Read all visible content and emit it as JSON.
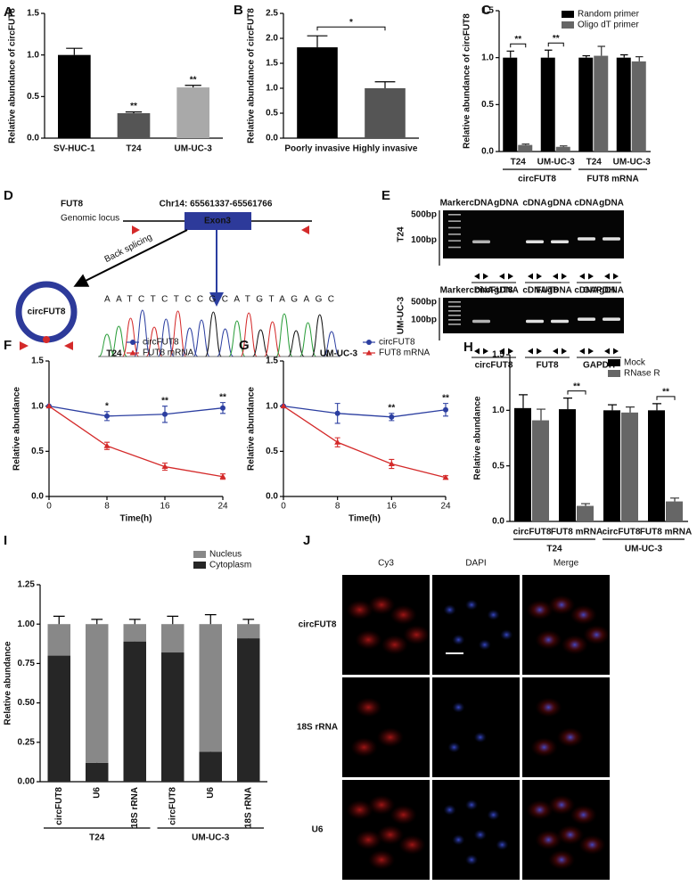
{
  "chart_data": [
    {
      "panel": "A",
      "type": "bar",
      "ylabel": "Relative abundance of circFUT8",
      "categories": [
        "SV-HUC-1",
        "T24",
        "UM-UC-3"
      ],
      "values": [
        1.0,
        0.3,
        0.61
      ],
      "errors": [
        0.08,
        0.015,
        0.025
      ],
      "colors": [
        "#000000",
        "#555555",
        "#a9a9a9"
      ],
      "significance": [
        null,
        "**",
        "**"
      ],
      "ylim": [
        0,
        1.5
      ],
      "yticks": [
        {
          "value": 0,
          "label": "0.0"
        },
        0.5,
        {
          "value": 1,
          "label": "1.0"
        },
        1.5
      ]
    },
    {
      "panel": "B",
      "type": "bar",
      "ylabel": "Relative abundance of circFUT8",
      "categories": [
        "Poorly invasive",
        "Highly invasive"
      ],
      "values": [
        1.82,
        1.0
      ],
      "errors": [
        0.23,
        0.13
      ],
      "colors": [
        "#000000",
        "#555555"
      ],
      "bracket": "*",
      "ylim": [
        0,
        2.5
      ],
      "yticks": [
        {
          "value": 0,
          "label": "0.0"
        },
        0.5,
        {
          "value": 1,
          "label": "1.0"
        },
        1.5,
        {
          "value": 2,
          "label": "2.0"
        },
        2.5
      ]
    },
    {
      "panel": "C",
      "type": "bar",
      "ylabel": "Relative abundance of circFUT8",
      "categories": [
        "T24",
        "UM-UC-3",
        "T24",
        "UM-UC-3"
      ],
      "groups": [
        "circFUT8",
        "FUT8 mRNA"
      ],
      "series": [
        {
          "name": "Random primer",
          "color": "#000000",
          "values": [
            1.0,
            1.0,
            1.0,
            1.0
          ],
          "errors": [
            0.07,
            0.08,
            0.02,
            0.03
          ]
        },
        {
          "name": "Oligo dT primer",
          "color": "#666666",
          "values": [
            0.07,
            0.05,
            1.02,
            0.96
          ],
          "errors": [
            0.01,
            0.01,
            0.1,
            0.05
          ]
        }
      ],
      "significance": [
        "**",
        "**",
        null,
        null
      ],
      "legend": "top right",
      "ylim": [
        0,
        1.5
      ],
      "yticks": [
        {
          "value": 0,
          "label": "0.0"
        },
        0.5,
        {
          "value": 1,
          "label": "1.0"
        },
        1.5
      ]
    },
    {
      "panel": "F",
      "type": "line",
      "title": "T24",
      "ylabel": "Relative abundance",
      "xlabel": "Time(h)",
      "x": [
        0,
        8,
        16,
        24
      ],
      "series": [
        {
          "name": "circFUT8",
          "color": "#2b3ea0",
          "marker": "circle",
          "values": [
            1.0,
            0.89,
            0.91,
            0.98
          ],
          "errors": [
            null,
            0.05,
            0.09,
            0.06
          ]
        },
        {
          "name": "FUT8 mRNA",
          "color": "#d42a2a",
          "marker": "triangle",
          "values": [
            1.0,
            0.56,
            0.33,
            0.22
          ],
          "errors": [
            null,
            0.04,
            0.04,
            0.03
          ]
        }
      ],
      "significance": [
        null,
        "*",
        "**",
        "**"
      ],
      "legend": "top right",
      "xlim": [
        0,
        24
      ],
      "xticks": [
        0,
        8,
        16,
        24
      ],
      "ylim": [
        0,
        1.5
      ],
      "yticks": [
        {
          "value": 0,
          "label": "0.0"
        },
        0.5,
        {
          "value": 1,
          "label": "1.0"
        },
        1.5
      ]
    },
    {
      "panel": "G",
      "type": "line",
      "title": "UM-UC-3",
      "ylabel": "Relative abundance",
      "xlabel": "Time(h)",
      "x": [
        0,
        8,
        16,
        24
      ],
      "series": [
        {
          "name": "circFUT8",
          "color": "#2b3ea0",
          "marker": "circle",
          "values": [
            1.0,
            0.92,
            0.88,
            0.96
          ],
          "errors": [
            null,
            0.11,
            0.04,
            0.07
          ]
        },
        {
          "name": "FUT8 mRNA",
          "color": "#d42a2a",
          "marker": "triangle",
          "values": [
            1.0,
            0.6,
            0.36,
            0.21
          ],
          "errors": [
            null,
            0.05,
            0.05,
            0.02
          ]
        }
      ],
      "significance": [
        null,
        null,
        "**",
        "**"
      ],
      "legend": "top right",
      "xlim": [
        0,
        24
      ],
      "xticks": [
        0,
        8,
        16,
        24
      ],
      "ylim": [
        0,
        1.5
      ],
      "yticks": [
        {
          "value": 0,
          "label": "0.0"
        },
        0.5,
        {
          "value": 1,
          "label": "1.0"
        },
        1.5
      ]
    },
    {
      "panel": "H",
      "type": "bar",
      "ylabel": "Relative abundance",
      "categories": [
        "circFUT8",
        "FUT8 mRNA",
        "circFUT8",
        "FUT8 mRNA"
      ],
      "groups": [
        "T24",
        "UM-UC-3"
      ],
      "series": [
        {
          "name": "Mock",
          "color": "#000000",
          "values": [
            1.02,
            1.01,
            1.0,
            1.0
          ],
          "errors": [
            0.12,
            0.1,
            0.05,
            0.06
          ]
        },
        {
          "name": "RNase R",
          "color": "#666666",
          "values": [
            0.91,
            0.14,
            0.98,
            0.18
          ],
          "errors": [
            0.1,
            0.02,
            0.05,
            0.03
          ]
        }
      ],
      "significance": [
        null,
        "**",
        null,
        "**"
      ],
      "legend": "top right",
      "ylim": [
        0,
        1.5
      ],
      "yticks": [
        {
          "value": 0,
          "label": "0.0"
        },
        0.5,
        {
          "value": 1,
          "label": "1.0"
        },
        1.5
      ]
    },
    {
      "panel": "I",
      "type": "bar",
      "stacked": true,
      "ylabel": "Relative abundance",
      "categories": [
        "circFUT8",
        "U6",
        "18S rRNA",
        "circFUT8",
        "U6",
        "18S rRNA"
      ],
      "groups": [
        "T24",
        "UM-UC-3"
      ],
      "series": [
        {
          "name": "Nucleus",
          "color": "#888888",
          "values": [
            0.2,
            0.88,
            0.11,
            0.18,
            0.81,
            0.09
          ],
          "errors": [
            0.05,
            0.03,
            0.03,
            0.05,
            0.06,
            0.03
          ]
        },
        {
          "name": "Cytoplasm",
          "color": "#262626",
          "values": [
            0.8,
            0.12,
            0.89,
            0.82,
            0.19,
            0.91
          ],
          "errors": [
            0.04,
            0.03,
            0.02,
            0.04,
            0.05,
            0.03
          ]
        }
      ],
      "legend": "top right",
      "ylim": [
        0,
        1.25
      ],
      "yticks": [
        {
          "value": 0,
          "label": "0.00"
        },
        0.25,
        {
          "value": 0.5,
          "label": "0.50"
        },
        0.75,
        {
          "value": 1,
          "label": "1.00"
        },
        1.25
      ]
    }
  ],
  "diagram_d": {
    "panel": "D",
    "gene": "FUT8",
    "locus_label": "Genomic locus",
    "coordinates": "Chr14: 65561337-65561766",
    "exon": "Exon3",
    "arrow_label": "Back splicing",
    "circle_label": "circFUT8",
    "sequence": "AATCTCTCCGCATGTAGAGC"
  },
  "gel_e": {
    "panel": "E",
    "gels": [
      {
        "cell_line": "T24",
        "lanes": [
          "Marker",
          "cDNA",
          "gDNA",
          "cDNA",
          "gDNA",
          "cDNA",
          "gDNA"
        ],
        "sizes": [
          "500bp",
          "100bp"
        ],
        "primers": [
          "circFUT8",
          "FUT8",
          "GAPDH"
        ]
      },
      {
        "cell_line": "UM-UC-3",
        "lanes": [
          "Marker",
          "cDNA",
          "gDNA",
          "cDNA",
          "gDNA",
          "cDNA",
          "gDNA"
        ],
        "sizes": [
          "500bp",
          "100bp"
        ],
        "primers": [
          "circFUT8",
          "FUT8",
          "GAPDH"
        ]
      }
    ]
  },
  "image_j": {
    "panel": "J",
    "columns": [
      "Cy3",
      "DAPI",
      "Merge"
    ],
    "rows": [
      "circFUT8",
      "18S rRNA",
      "U6"
    ]
  }
}
